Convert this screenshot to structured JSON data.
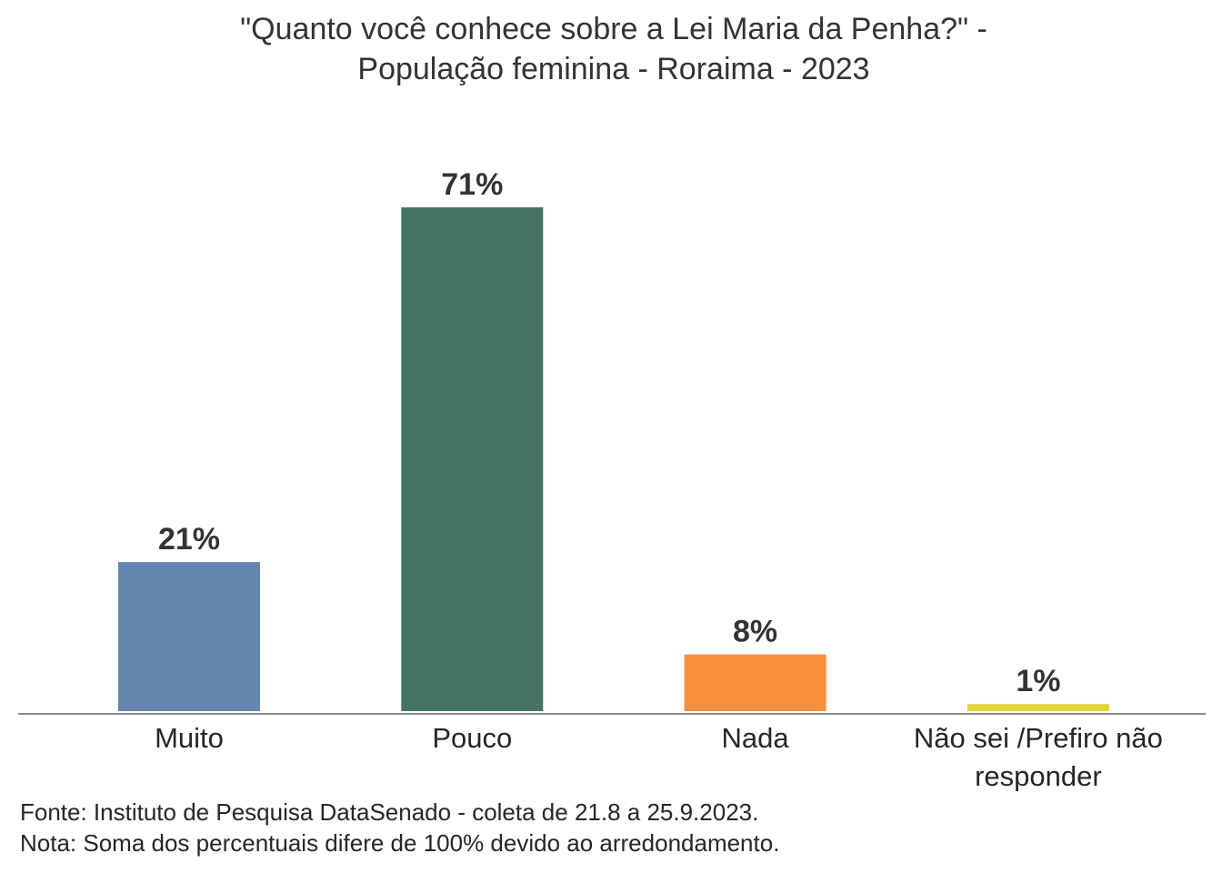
{
  "title": {
    "line1": "\"Quanto você conhece sobre a Lei Maria da Penha?\" -",
    "line2": "População feminina - Roraima - 2023"
  },
  "chart_data": {
    "type": "bar",
    "categories": [
      "Muito",
      "Pouco",
      "Nada",
      "Não sei /Prefiro não responder"
    ],
    "category_label_lines": [
      [
        "Muito"
      ],
      [
        "Pouco"
      ],
      [
        "Nada"
      ],
      [
        "Não sei /Prefiro não",
        "responder"
      ]
    ],
    "values": [
      21,
      71,
      8,
      1
    ],
    "value_labels": [
      "21%",
      "71%",
      "8%",
      "1%"
    ],
    "colors": [
      "#6487b0",
      "#447563",
      "#fa8f3b",
      "#e3d43b"
    ],
    "ylim": [
      0,
      71
    ],
    "grid": false,
    "legend": "none",
    "xlabel": "",
    "ylabel": ""
  },
  "footer": {
    "source": "Fonte: Instituto de Pesquisa DataSenado - coleta de 21.8 a 25.9.2023.",
    "note": "Nota: Soma dos percentuais difere de 100% devido ao arredondamento."
  }
}
